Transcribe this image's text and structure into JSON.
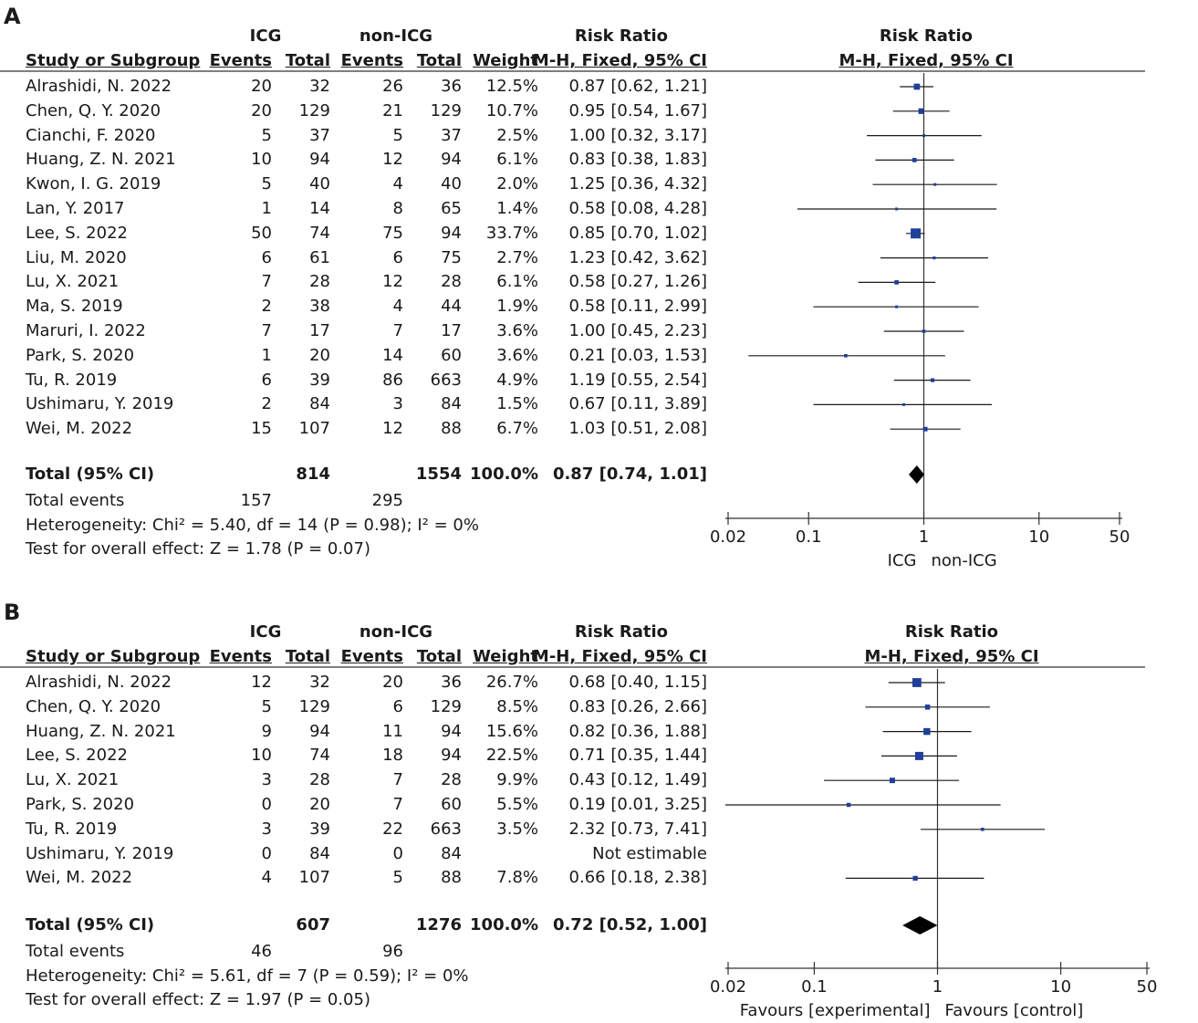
{
  "chart_data": [
    {
      "type": "forest",
      "panel": "A",
      "header": {
        "group1": "ICG",
        "group2": "non-ICG",
        "risk_ratio": "Risk Ratio",
        "plot_title": "Risk Ratio",
        "study": "Study or Subgroup",
        "events": "Events",
        "total": "Total",
        "weight": "Weight",
        "method": "M-H, Fixed, 95% CI",
        "plot_method": "M-H, Fixed, 95% CI"
      },
      "studies": [
        {
          "name": "Alrashidi, N. 2022",
          "e1": "20",
          "n1": "32",
          "e2": "26",
          "n2": "36",
          "weight": "12.5%",
          "ci": "0.87 [0.62, 1.21]",
          "rr": 0.87,
          "lo": 0.62,
          "hi": 1.21,
          "w": 12.5
        },
        {
          "name": "Chen, Q. Y. 2020",
          "e1": "20",
          "n1": "129",
          "e2": "21",
          "n2": "129",
          "weight": "10.7%",
          "ci": "0.95 [0.54, 1.67]",
          "rr": 0.95,
          "lo": 0.54,
          "hi": 1.67,
          "w": 10.7
        },
        {
          "name": "Cianchi, F. 2020",
          "e1": "5",
          "n1": "37",
          "e2": "5",
          "n2": "37",
          "weight": "2.5%",
          "ci": "1.00 [0.32, 3.17]",
          "rr": 1.0,
          "lo": 0.32,
          "hi": 3.17,
          "w": 2.5
        },
        {
          "name": "Huang, Z. N. 2021",
          "e1": "10",
          "n1": "94",
          "e2": "12",
          "n2": "94",
          "weight": "6.1%",
          "ci": "0.83 [0.38, 1.83]",
          "rr": 0.83,
          "lo": 0.38,
          "hi": 1.83,
          "w": 6.1
        },
        {
          "name": "Kwon, I. G. 2019",
          "e1": "5",
          "n1": "40",
          "e2": "4",
          "n2": "40",
          "weight": "2.0%",
          "ci": "1.25 [0.36, 4.32]",
          "rr": 1.25,
          "lo": 0.36,
          "hi": 4.32,
          "w": 2.0
        },
        {
          "name": "Lan, Y. 2017",
          "e1": "1",
          "n1": "14",
          "e2": "8",
          "n2": "65",
          "weight": "1.4%",
          "ci": "0.58 [0.08, 4.28]",
          "rr": 0.58,
          "lo": 0.08,
          "hi": 4.28,
          "w": 1.4
        },
        {
          "name": "Lee, S. 2022",
          "e1": "50",
          "n1": "74",
          "e2": "75",
          "n2": "94",
          "weight": "33.7%",
          "ci": "0.85 [0.70, 1.02]",
          "rr": 0.85,
          "lo": 0.7,
          "hi": 1.02,
          "w": 33.7
        },
        {
          "name": "Liu, M. 2020",
          "e1": "6",
          "n1": "61",
          "e2": "6",
          "n2": "75",
          "weight": "2.7%",
          "ci": "1.23 [0.42, 3.62]",
          "rr": 1.23,
          "lo": 0.42,
          "hi": 3.62,
          "w": 2.7
        },
        {
          "name": "Lu, X. 2021",
          "e1": "7",
          "n1": "28",
          "e2": "12",
          "n2": "28",
          "weight": "6.1%",
          "ci": "0.58 [0.27, 1.26]",
          "rr": 0.58,
          "lo": 0.27,
          "hi": 1.26,
          "w": 6.1
        },
        {
          "name": "Ma, S. 2019",
          "e1": "2",
          "n1": "38",
          "e2": "4",
          "n2": "44",
          "weight": "1.9%",
          "ci": "0.58 [0.11, 2.99]",
          "rr": 0.58,
          "lo": 0.11,
          "hi": 2.99,
          "w": 1.9
        },
        {
          "name": "Maruri, I. 2022",
          "e1": "7",
          "n1": "17",
          "e2": "7",
          "n2": "17",
          "weight": "3.6%",
          "ci": "1.00 [0.45, 2.23]",
          "rr": 1.0,
          "lo": 0.45,
          "hi": 2.23,
          "w": 3.6
        },
        {
          "name": "Park, S. 2020",
          "e1": "1",
          "n1": "20",
          "e2": "14",
          "n2": "60",
          "weight": "3.6%",
          "ci": "0.21 [0.03, 1.53]",
          "rr": 0.21,
          "lo": 0.03,
          "hi": 1.53,
          "w": 3.6
        },
        {
          "name": "Tu, R. 2019",
          "e1": "6",
          "n1": "39",
          "e2": "86",
          "n2": "663",
          "weight": "4.9%",
          "ci": "1.19 [0.55, 2.54]",
          "rr": 1.19,
          "lo": 0.55,
          "hi": 2.54,
          "w": 4.9
        },
        {
          "name": "Ushimaru, Y. 2019",
          "e1": "2",
          "n1": "84",
          "e2": "3",
          "n2": "84",
          "weight": "1.5%",
          "ci": "0.67 [0.11, 3.89]",
          "rr": 0.67,
          "lo": 0.11,
          "hi": 3.89,
          "w": 1.5
        },
        {
          "name": "Wei, M. 2022",
          "e1": "15",
          "n1": "107",
          "e2": "12",
          "n2": "88",
          "weight": "6.7%",
          "ci": "1.03 [0.51, 2.08]",
          "rr": 1.03,
          "lo": 0.51,
          "hi": 2.08,
          "w": 6.7
        }
      ],
      "total": {
        "label": "Total (95% CI)",
        "n1": "814",
        "n2": "1554",
        "weight": "100.0%",
        "ci": "0.87 [0.74, 1.01]",
        "rr": 0.87,
        "lo": 0.74,
        "hi": 1.01
      },
      "total_events": {
        "label": "Total events",
        "e1": "157",
        "e2": "295"
      },
      "heterogeneity": "Heterogeneity: Chi² = 5.40, df = 14 (P = 0.98); I² = 0%",
      "overall_effect": "Test for overall effect: Z = 1.78 (P = 0.07)",
      "axis": {
        "ticks": [
          0.02,
          0.1,
          1,
          10,
          50
        ],
        "tick_labels": [
          "0.02",
          "0.1",
          "1",
          "10",
          "50"
        ],
        "scale": "log",
        "xlim": [
          0.02,
          50
        ]
      },
      "favours_left": "ICG",
      "favours_right": "non-ICG"
    },
    {
      "type": "forest",
      "panel": "B",
      "header": {
        "group1": "ICG",
        "group2": "non-ICG",
        "risk_ratio": "Risk Ratio",
        "plot_title": "Risk Ratio",
        "study": "Study or Subgroup",
        "events": "Events",
        "total": "Total",
        "weight": "Weight",
        "method": "M-H, Fixed, 95% CI",
        "plot_method": "M-H, Fixed, 95% CI"
      },
      "studies": [
        {
          "name": "Alrashidi, N. 2022",
          "e1": "12",
          "n1": "32",
          "e2": "20",
          "n2": "36",
          "weight": "26.7%",
          "ci": "0.68 [0.40, 1.15]",
          "rr": 0.68,
          "lo": 0.4,
          "hi": 1.15,
          "w": 26.7
        },
        {
          "name": "Chen, Q. Y. 2020",
          "e1": "5",
          "n1": "129",
          "e2": "6",
          "n2": "129",
          "weight": "8.5%",
          "ci": "0.83 [0.26, 2.66]",
          "rr": 0.83,
          "lo": 0.26,
          "hi": 2.66,
          "w": 8.5
        },
        {
          "name": "Huang, Z. N. 2021",
          "e1": "9",
          "n1": "94",
          "e2": "11",
          "n2": "94",
          "weight": "15.6%",
          "ci": "0.82 [0.36, 1.88]",
          "rr": 0.82,
          "lo": 0.36,
          "hi": 1.88,
          "w": 15.6
        },
        {
          "name": "Lee, S. 2022",
          "e1": "10",
          "n1": "74",
          "e2": "18",
          "n2": "94",
          "weight": "22.5%",
          "ci": "0.71 [0.35, 1.44]",
          "rr": 0.71,
          "lo": 0.35,
          "hi": 1.44,
          "w": 22.5
        },
        {
          "name": "Lu, X. 2021",
          "e1": "3",
          "n1": "28",
          "e2": "7",
          "n2": "28",
          "weight": "9.9%",
          "ci": "0.43 [0.12, 1.49]",
          "rr": 0.43,
          "lo": 0.12,
          "hi": 1.49,
          "w": 9.9
        },
        {
          "name": "Park, S. 2020",
          "e1": "0",
          "n1": "20",
          "e2": "7",
          "n2": "60",
          "weight": "5.5%",
          "ci": "0.19 [0.01, 3.25]",
          "rr": 0.19,
          "lo": 0.01,
          "hi": 3.25,
          "w": 5.5
        },
        {
          "name": "Tu, R. 2019",
          "e1": "3",
          "n1": "39",
          "e2": "22",
          "n2": "663",
          "weight": "3.5%",
          "ci": "2.32 [0.73, 7.41]",
          "rr": 2.32,
          "lo": 0.73,
          "hi": 7.41,
          "w": 3.5
        },
        {
          "name": "Ushimaru, Y. 2019",
          "e1": "0",
          "n1": "84",
          "e2": "0",
          "n2": "84",
          "weight": "",
          "ci": "Not estimable",
          "rr": null,
          "lo": null,
          "hi": null,
          "w": 0
        },
        {
          "name": "Wei, M. 2022",
          "e1": "4",
          "n1": "107",
          "e2": "5",
          "n2": "88",
          "weight": "7.8%",
          "ci": "0.66 [0.18, 2.38]",
          "rr": 0.66,
          "lo": 0.18,
          "hi": 2.38,
          "w": 7.8
        }
      ],
      "total": {
        "label": "Total (95% CI)",
        "n1": "607",
        "n2": "1276",
        "weight": "100.0%",
        "ci": "0.72 [0.52, 1.00]",
        "rr": 0.72,
        "lo": 0.52,
        "hi": 1.0
      },
      "total_events": {
        "label": "Total events",
        "e1": "46",
        "e2": "96"
      },
      "heterogeneity": "Heterogeneity: Chi² = 5.61, df = 7 (P = 0.59); I² = 0%",
      "overall_effect": "Test for overall effect: Z = 1.97 (P = 0.05)",
      "axis": {
        "ticks": [
          0.02,
          0.1,
          1,
          10,
          50
        ],
        "tick_labels": [
          "0.02",
          "0.1",
          "1",
          "10",
          "50"
        ],
        "scale": "log",
        "xlim": [
          0.02,
          50
        ]
      },
      "favours_left": "Favours [experimental]",
      "favours_right": "Favours [control]"
    }
  ],
  "colors": {
    "marker": "#1f3f99",
    "line": "#1a1a1a",
    "diamond": "#000000"
  }
}
